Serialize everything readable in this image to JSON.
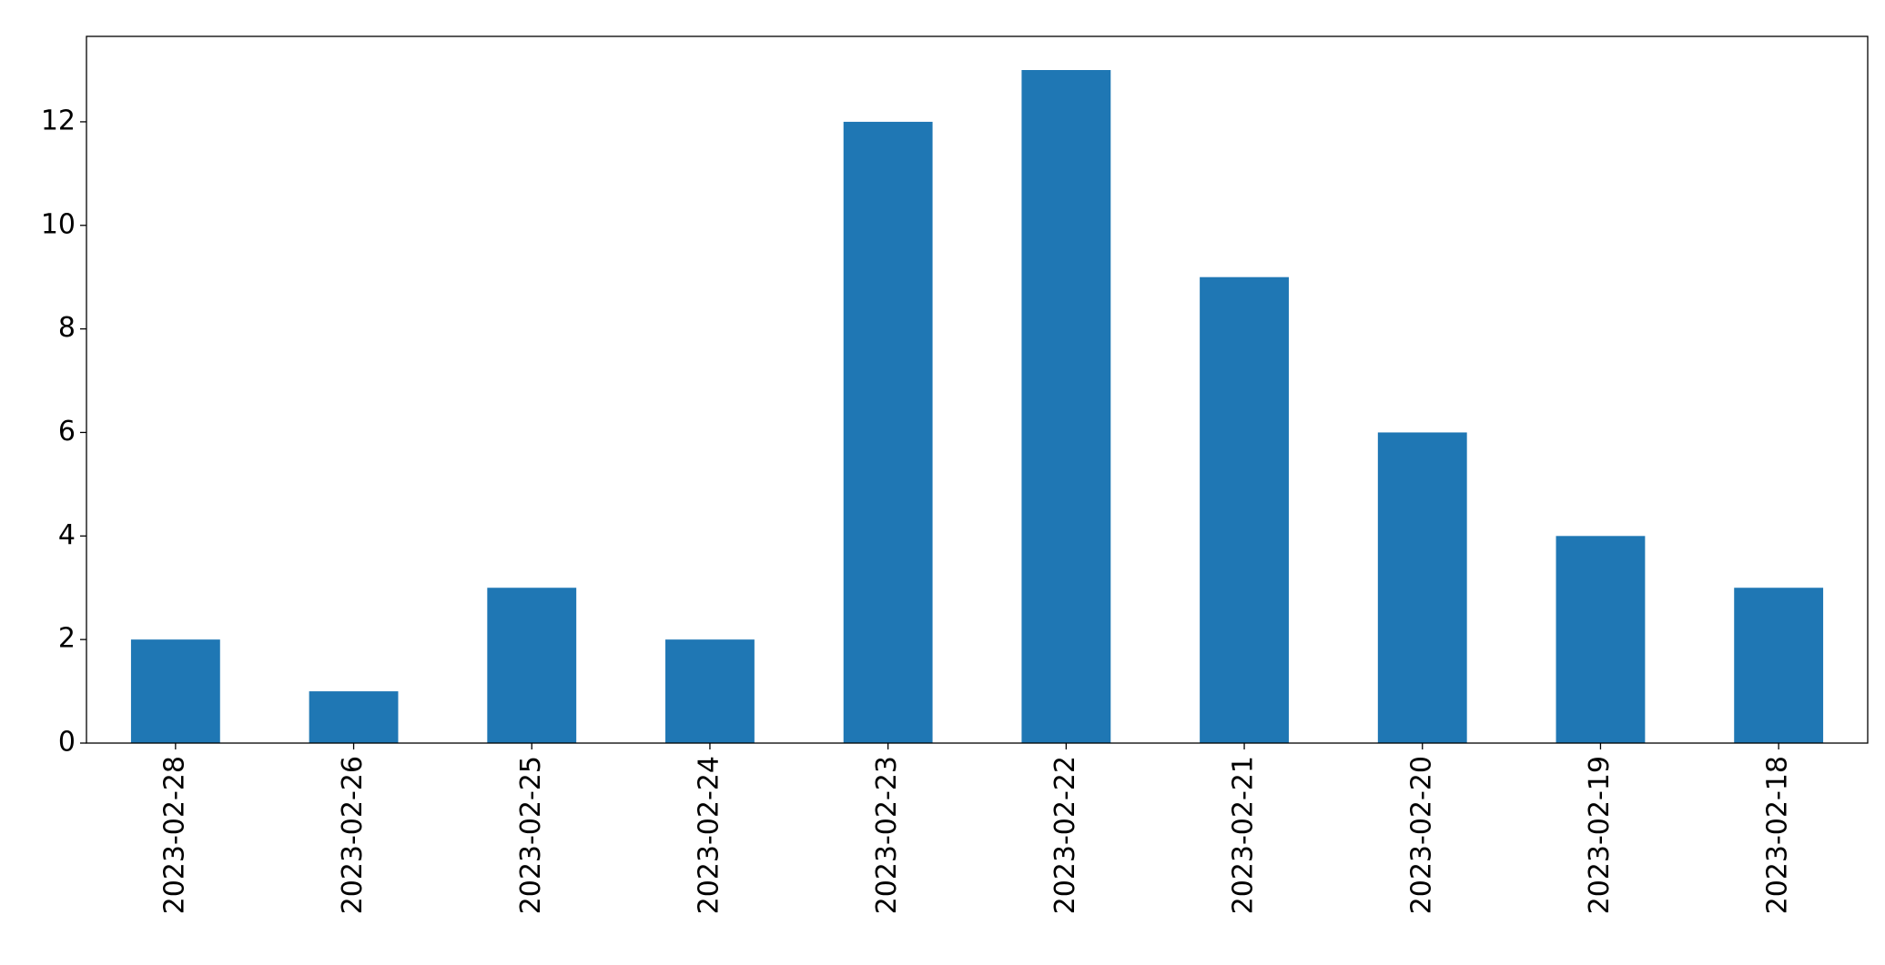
{
  "chart_data": {
    "type": "bar",
    "categories": [
      "2023-02-28",
      "2023-02-26",
      "2023-02-25",
      "2023-02-24",
      "2023-02-23",
      "2023-02-22",
      "2023-02-21",
      "2023-02-20",
      "2023-02-19",
      "2023-02-18"
    ],
    "values": [
      2,
      1,
      3,
      2,
      12,
      13,
      9,
      6,
      4,
      3
    ],
    "color": "#1f77b4",
    "ylim": [
      0,
      13.65
    ],
    "yticks": [
      0,
      2,
      4,
      6,
      8,
      10,
      12
    ],
    "grid": false
  }
}
